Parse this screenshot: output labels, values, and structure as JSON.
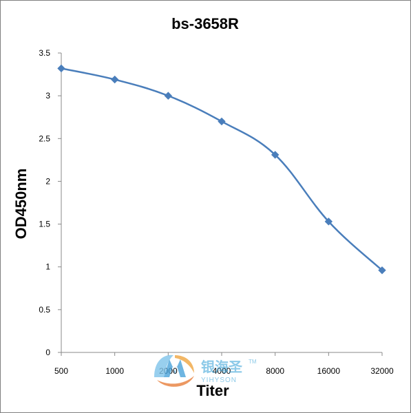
{
  "chart_data": {
    "type": "line",
    "title": "bs-3658R",
    "xlabel": "Titer",
    "ylabel": "OD450nm",
    "categories": [
      "500",
      "1000",
      "2000",
      "4000",
      "8000",
      "16000",
      "32000"
    ],
    "series": [
      {
        "values": [
          3.32,
          3.19,
          3.0,
          2.7,
          2.31,
          1.53,
          0.96
        ]
      }
    ],
    "yticks": [
      "0",
      "0.5",
      "1",
      "1.5",
      "2",
      "2.5",
      "3",
      "3.5"
    ],
    "ylim": [
      0,
      3.5
    ],
    "grid": false,
    "legend": "none",
    "line_color": "#4a7ebb",
    "marker": "diamond"
  },
  "watermark": {
    "chinese": "银海圣",
    "english": "YIHYSON",
    "trademark": "TM"
  }
}
